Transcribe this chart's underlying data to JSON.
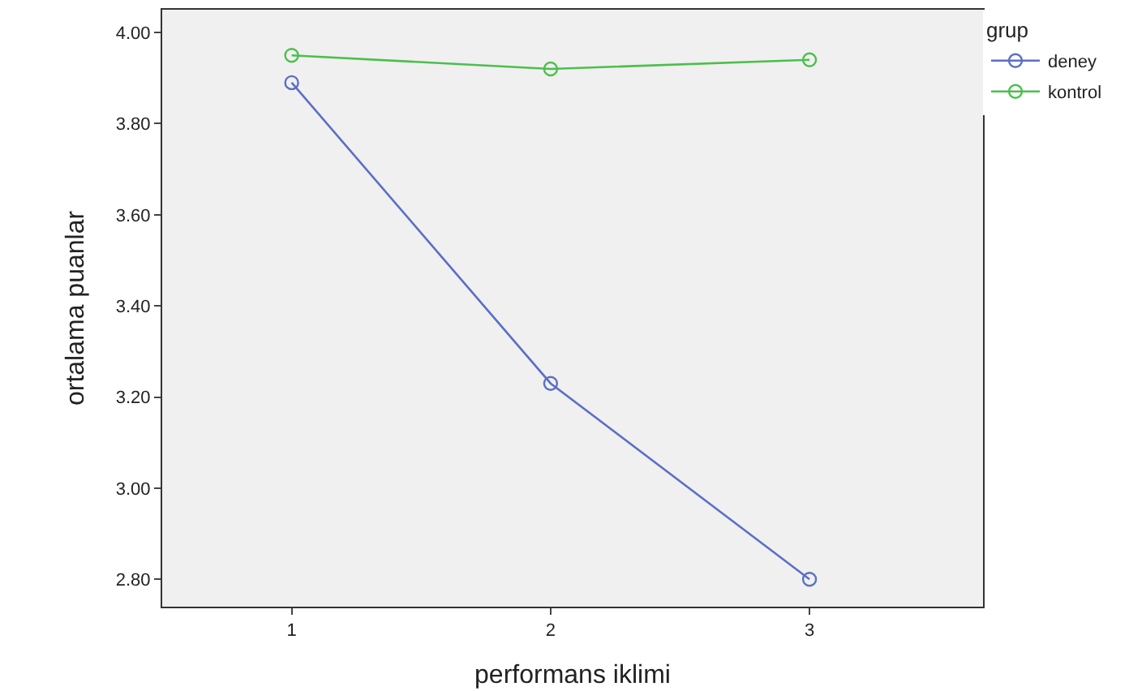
{
  "chart_data": {
    "type": "line",
    "xlabel": "performans iklimi",
    "ylabel": "ortalama puanlar",
    "legend_title": "grup",
    "x": [
      1,
      2,
      3
    ],
    "series": [
      {
        "name": "deney",
        "color": "#5b6fc6",
        "values": [
          3.89,
          3.23,
          2.8
        ]
      },
      {
        "name": "kontrol",
        "color": "#4cbf4c",
        "values": [
          3.95,
          3.92,
          3.94
        ]
      }
    ],
    "xlim": [
      0.5,
      3.67
    ],
    "xticks": [
      1,
      2,
      3
    ],
    "ylim": [
      2.74,
      4.05
    ],
    "yticks": [
      {
        "value": 2.8,
        "label": "2.80"
      },
      {
        "value": 3.0,
        "label": "3.00"
      },
      {
        "value": 3.2,
        "label": "3.20"
      },
      {
        "value": 3.4,
        "label": "3.40"
      },
      {
        "value": 3.6,
        "label": "3.60"
      },
      {
        "value": 3.8,
        "label": "3.80"
      },
      {
        "value": 4.0,
        "label": "4.00"
      }
    ],
    "marker": "circle",
    "line_style": "solid",
    "grid": false,
    "legend": "top right"
  }
}
